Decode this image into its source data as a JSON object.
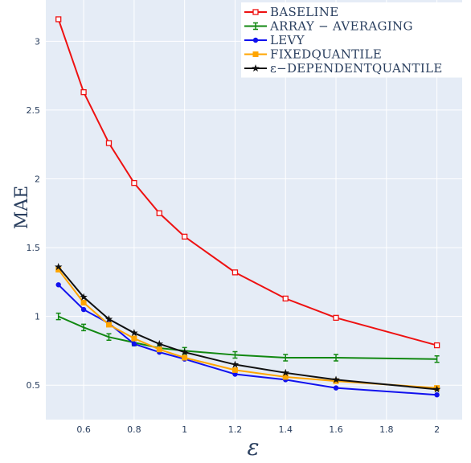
{
  "chart_data": {
    "type": "line",
    "title": "",
    "xlabel": "ε",
    "ylabel": "MAE",
    "x": [
      0.5,
      0.6,
      0.7,
      0.8,
      0.9,
      1.0,
      1.2,
      1.4,
      1.6,
      2.0
    ],
    "xlim": [
      0.45,
      2.1
    ],
    "ylim": [
      0.25,
      3.3
    ],
    "x_ticks": [
      0.6,
      0.8,
      1,
      1.2,
      1.4,
      1.6,
      1.8,
      2
    ],
    "x_tick_labels": [
      "0.6",
      "0.8",
      "1",
      "1.2",
      "1.4",
      "1.6",
      "1.8",
      "2"
    ],
    "y_ticks": [
      0.5,
      1,
      1.5,
      2,
      2.5,
      3
    ],
    "y_tick_labels": [
      "0.5",
      "1",
      "1.5",
      "2",
      "2.5",
      "3"
    ],
    "grid": true,
    "legend_position": "top-right",
    "background": "#e5ecf6",
    "series": [
      {
        "name": "BASELINE",
        "color": "#ee1111",
        "marker": "open-square",
        "values": [
          3.16,
          2.63,
          2.26,
          1.97,
          1.75,
          1.58,
          1.32,
          1.13,
          0.99,
          0.79
        ]
      },
      {
        "name": "ARRAY − AVERAGING",
        "color": "#118811",
        "marker": "errorbar",
        "values": [
          1.0,
          0.92,
          0.85,
          0.81,
          0.77,
          0.75,
          0.72,
          0.7,
          0.7,
          0.69
        ]
      },
      {
        "name": "LEVY",
        "color": "#1111ee",
        "marker": "circle",
        "values": [
          1.23,
          1.05,
          0.95,
          0.8,
          0.74,
          0.69,
          0.58,
          0.54,
          0.48,
          0.43
        ]
      },
      {
        "name": "FIXEDQUANTILE",
        "color": "#ffa500",
        "marker": "square",
        "values": [
          1.34,
          1.1,
          0.94,
          0.84,
          0.76,
          0.7,
          0.61,
          0.56,
          0.53,
          0.48
        ]
      },
      {
        "name": "ε−DEPENDENTQUANTILE",
        "color": "#111111",
        "marker": "star",
        "values": [
          1.36,
          1.14,
          0.98,
          0.88,
          0.8,
          0.74,
          0.65,
          0.59,
          0.54,
          0.47
        ]
      }
    ]
  }
}
